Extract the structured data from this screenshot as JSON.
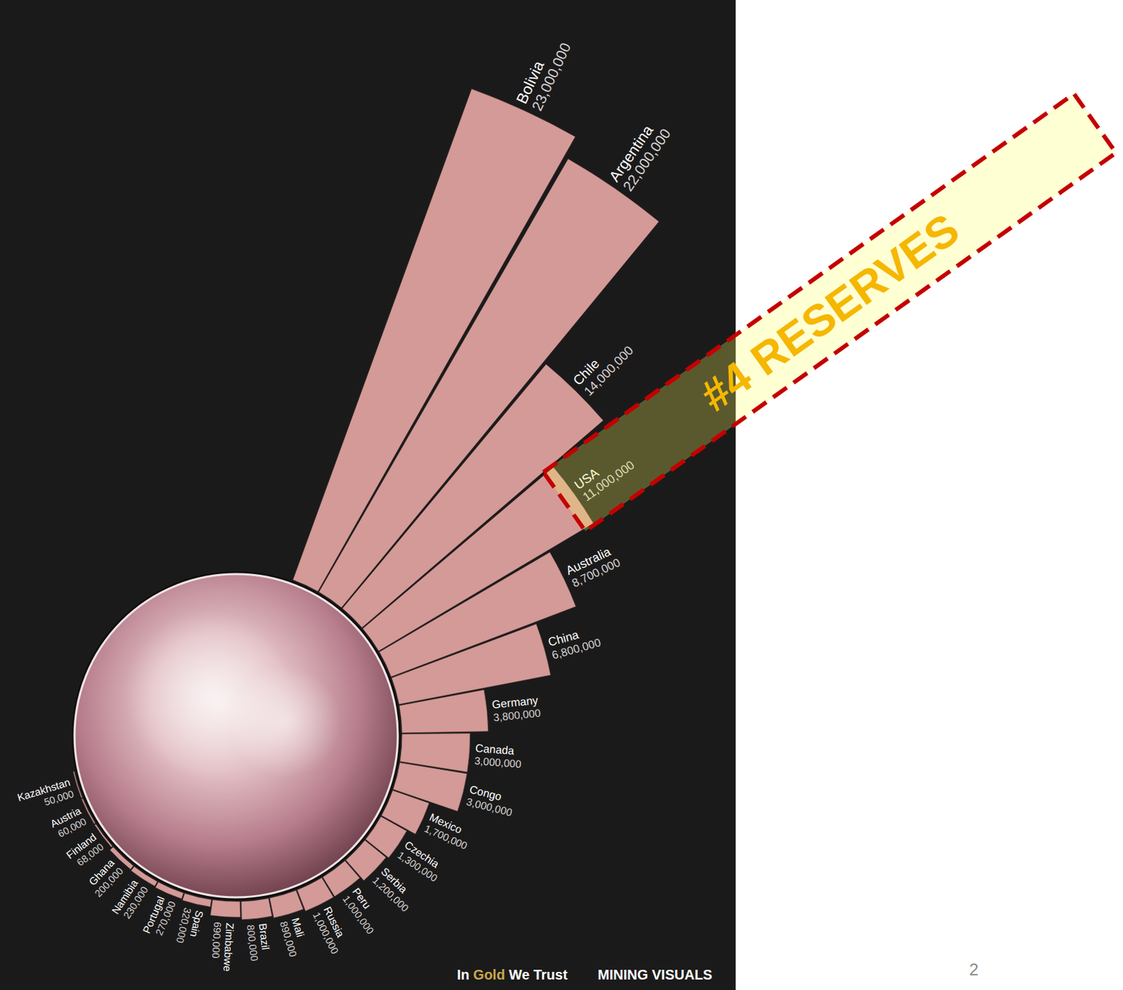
{
  "chart_data": {
    "type": "radial_bar",
    "categories": [
      "Bolivia",
      "Argentina",
      "Chile",
      "USA",
      "Australia",
      "China",
      "Germany",
      "Canada",
      "Congo",
      "Mexico",
      "Czechia",
      "Serbia",
      "Peru",
      "Russia",
      "Mali",
      "Brazil",
      "Zimbabwe",
      "Spain",
      "Portugal",
      "Namibia",
      "Ghana",
      "Finland",
      "Austria",
      "Kazakhstan"
    ],
    "values": [
      23000000,
      22000000,
      14000000,
      11000000,
      8700000,
      6800000,
      3800000,
      3000000,
      3000000,
      1700000,
      1300000,
      1200000,
      1000000,
      1000000,
      890000,
      800000,
      690000,
      320000,
      270000,
      230000,
      200000,
      68000,
      60000,
      50000
    ],
    "value_labels": [
      "23,000,000",
      "22,000,000",
      "14,000,000",
      "11,000,000",
      "8,700,000",
      "6,800,000",
      "3,800,000",
      "3,000,000",
      "3,000,000",
      "1,700,000",
      "1,300,000",
      "1,200,000",
      "1,000,000",
      "1,000,000",
      "890,000",
      "800,000",
      "690,000",
      "320,000",
      "270,000",
      "230,000",
      "200,000",
      "68,000",
      "60,000",
      "50,000"
    ],
    "color": "#d49a97",
    "ylim": [
      0,
      23000000
    ],
    "tick_labels": false,
    "data_labels": true,
    "annotations": [
      {
        "text": "#4 RESERVES",
        "category": "USA"
      }
    ],
    "credits": [
      "In Gold We Trust",
      "MINING VISUALS"
    ]
  },
  "page_number": "2"
}
